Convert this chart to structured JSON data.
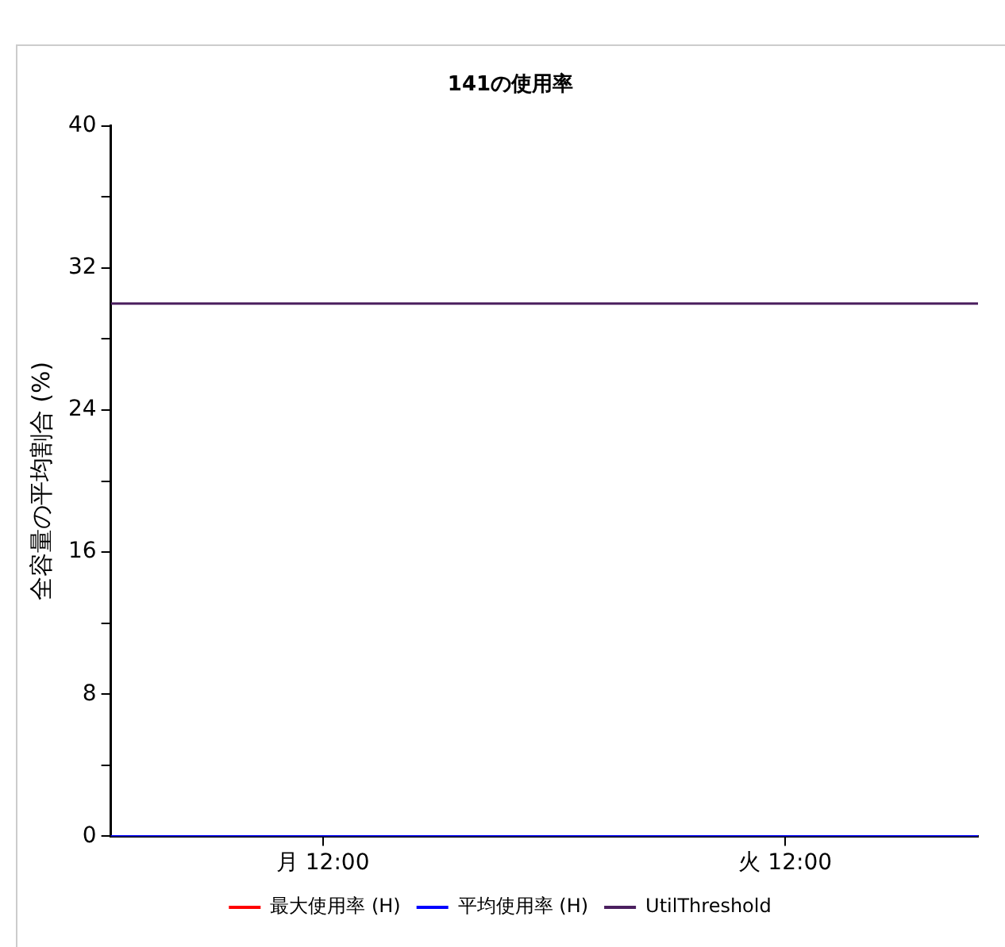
{
  "chart_data": {
    "type": "line",
    "title": "141の使用率",
    "ylabel": "全容量の平均割合 (%)",
    "categories": [
      null,
      null,
      null,
      null,
      null,
      null,
      null,
      null,
      null,
      null,
      null,
      "月 12:00",
      null,
      null,
      null,
      null,
      null,
      null,
      null,
      null,
      null,
      null,
      null,
      null,
      null,
      null,
      null,
      null,
      null,
      null,
      null,
      null,
      null,
      null,
      null,
      "火 12:00",
      null,
      null,
      null,
      null,
      null,
      null,
      null,
      null,
      null,
      null
    ],
    "ylim": [
      0,
      40
    ],
    "yticks": [
      0,
      {
        "value": 4,
        "label": null
      },
      8,
      {
        "value": 12,
        "label": null
      },
      16,
      {
        "value": 20,
        "label": null
      },
      24,
      {
        "value": 28,
        "label": null
      },
      32,
      {
        "value": 36,
        "label": null
      },
      40
    ],
    "series": [
      {
        "name": "最大使用率 (H)",
        "color": "#ff0000",
        "values": [
          null,
          null,
          null,
          null,
          null,
          null,
          null,
          null,
          null,
          null,
          null,
          null,
          null,
          null,
          null,
          null,
          null,
          null,
          null,
          null,
          null,
          null,
          null,
          null,
          null,
          null,
          null,
          null,
          null,
          null,
          null,
          null,
          null,
          null,
          null,
          null,
          null,
          null,
          null,
          null,
          null,
          null,
          null,
          null,
          null,
          null
        ]
      },
      {
        "name": "平均使用率 (H)",
        "color": "#0000ff",
        "values": [
          0,
          0,
          0,
          0,
          0,
          0,
          0,
          0,
          0,
          0,
          0,
          0,
          0,
          0,
          0,
          0,
          0,
          0,
          0,
          0,
          0,
          0,
          0,
          0,
          0,
          0,
          0,
          0,
          0,
          0,
          0,
          0,
          0,
          0,
          0,
          0,
          0,
          0,
          0,
          0,
          0,
          0,
          0,
          0,
          0,
          0
        ]
      },
      {
        "name": "UtilThreshold",
        "color": "#4b1f5f",
        "values": [
          30,
          30,
          30,
          30,
          30,
          30,
          30,
          30,
          30,
          30,
          30,
          30,
          30,
          30,
          30,
          30,
          30,
          30,
          30,
          30,
          30,
          30,
          30,
          30,
          30,
          30,
          30,
          30,
          30,
          30,
          30,
          30,
          30,
          30,
          30,
          30,
          30,
          30,
          30,
          30,
          30,
          30,
          30,
          30,
          30,
          30
        ]
      }
    ],
    "grid": false,
    "legend": "bottom",
    "marker": "none",
    "line_style": "solid"
  }
}
